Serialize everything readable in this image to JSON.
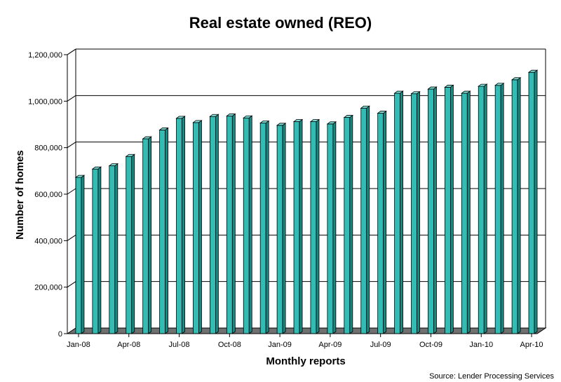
{
  "chart_data": {
    "type": "bar",
    "title": "Real estate owned (REO)",
    "xlabel": "Monthly reports",
    "ylabel": "Number of homes",
    "source": "Source: Lender Processing Services",
    "ylim": [
      0,
      1200000
    ],
    "yticks": [
      0,
      200000,
      400000,
      600000,
      800000,
      1000000,
      1200000
    ],
    "ytick_labels": [
      "0",
      "200,000",
      "400,000",
      "600,000",
      "800,000",
      "1,000,000",
      "1,200,000"
    ],
    "grid": true,
    "categories": [
      "Jan-08",
      "Feb-08",
      "Mar-08",
      "Apr-08",
      "May-08",
      "Jun-08",
      "Jul-08",
      "Aug-08",
      "Sep-08",
      "Oct-08",
      "Nov-08",
      "Dec-08",
      "Jan-09",
      "Feb-09",
      "Mar-09",
      "Apr-09",
      "May-09",
      "Jun-09",
      "Jul-09",
      "Aug-09",
      "Sep-09",
      "Oct-09",
      "Nov-09",
      "Dec-09",
      "Jan-10",
      "Feb-10",
      "Mar-10",
      "Apr-10"
    ],
    "xtick_labels": [
      "Jan-08",
      "",
      "",
      "Apr-08",
      "",
      "",
      "Jul-08",
      "",
      "",
      "Oct-08",
      "",
      "",
      "Jan-09",
      "",
      "",
      "Apr-09",
      "",
      "",
      "Jul-09",
      "",
      "",
      "Oct-09",
      "",
      "",
      "Jan-10",
      "",
      "",
      "Apr-10"
    ],
    "values": [
      672000,
      708000,
      722000,
      762000,
      838000,
      876000,
      926000,
      908000,
      934000,
      936000,
      928000,
      906000,
      896000,
      912000,
      912000,
      902000,
      930000,
      970000,
      948000,
      1034000,
      1032000,
      1052000,
      1060000,
      1034000,
      1064000,
      1068000,
      1092000,
      1124000
    ],
    "colors": {
      "bar_face": "#33bcb4",
      "bar_side": "#168a84",
      "bar_top": "#7fe0da",
      "floor": "#707070"
    }
  }
}
